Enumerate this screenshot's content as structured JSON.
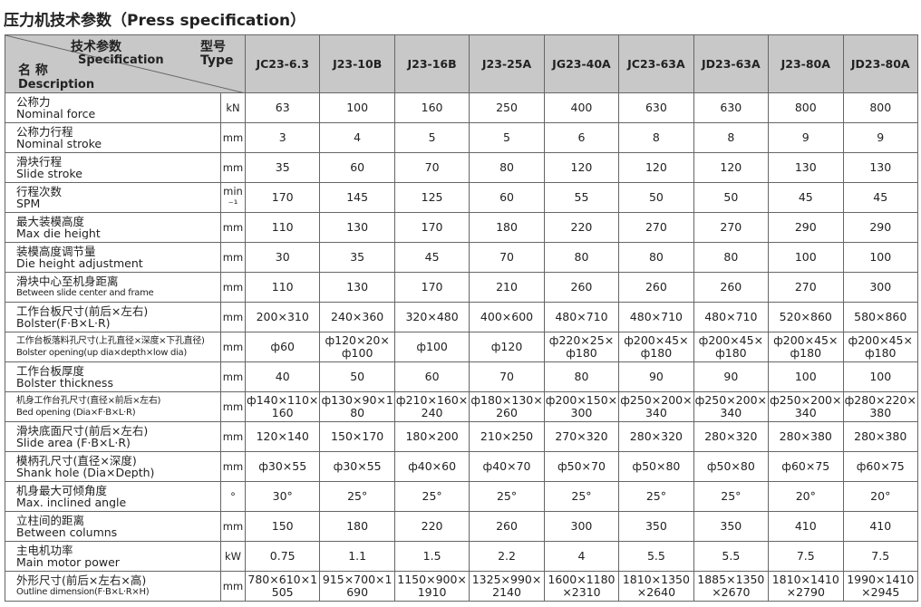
{
  "title": "压力机技术参数（Press specification）",
  "table": {
    "header": {
      "spec_zh": "技术参数",
      "spec_en": "Specification",
      "type_zh": "型号",
      "type_en": "Type",
      "desc_zh": "名 称",
      "desc_en": "Description"
    },
    "columns": [
      "JC23-6.3",
      "J23-10B",
      "J23-16B",
      "J23-25A",
      "JG23-40A",
      "JC23-63A",
      "JD23-63A",
      "J23-80A",
      "JD23-80A"
    ],
    "rows": [
      {
        "name_zh": "公称力",
        "name_en": "Nominal force",
        "unit": "kN",
        "values": [
          "63",
          "100",
          "160",
          "250",
          "400",
          "630",
          "630",
          "800",
          "800"
        ]
      },
      {
        "name_zh": "公称力行程",
        "name_en": "Nominal stroke",
        "unit": "mm",
        "values": [
          "3",
          "4",
          "5",
          "5",
          "6",
          "8",
          "8",
          "9",
          "9"
        ]
      },
      {
        "name_zh": "滑块行程",
        "name_en": "Slide stroke",
        "unit": "mm",
        "values": [
          "35",
          "60",
          "70",
          "80",
          "120",
          "120",
          "120",
          "130",
          "130"
        ]
      },
      {
        "name_zh": "行程次数",
        "name_en": "SPM",
        "unit": "min⁻¹",
        "values": [
          "170",
          "145",
          "125",
          "60",
          "55",
          "50",
          "50",
          "45",
          "45"
        ]
      },
      {
        "name_zh": "最大装模高度",
        "name_en": "Max die height",
        "unit": "mm",
        "values": [
          "110",
          "130",
          "170",
          "180",
          "220",
          "270",
          "270",
          "290",
          "290"
        ]
      },
      {
        "name_zh": "装模高度调节量",
        "name_en": "Die height adjustment",
        "unit": "mm",
        "values": [
          "30",
          "35",
          "45",
          "70",
          "80",
          "80",
          "80",
          "100",
          "100"
        ]
      },
      {
        "name_zh": "滑块中心至机身距离",
        "name_en": "Between slide center and frame",
        "unit": "mm",
        "values": [
          "110",
          "130",
          "170",
          "210",
          "260",
          "260",
          "260",
          "270",
          "300"
        ]
      },
      {
        "name_zh": "工作台板尺寸(前后×左右)",
        "name_en": "Bolster(F·B×L·R)",
        "unit": "mm",
        "values": [
          "200×310",
          "240×360",
          "320×480",
          "400×600",
          "480×710",
          "480×710",
          "480×710",
          "520×860",
          "580×860"
        ]
      },
      {
        "name_zh": "工作台板落料孔尺寸(上孔直径×深度×下孔直径)",
        "name_en": "Bolster opening(up dia×depth×low dia)",
        "unit": "mm",
        "values": [
          "ф60",
          "ф120×20×ф100",
          "ф100",
          "ф120",
          "ф220×25×ф180",
          "ф200×45×ф180",
          "ф200×45×ф180",
          "ф200×45×ф180",
          "ф200×45×ф180"
        ]
      },
      {
        "name_zh": "工作台板厚度",
        "name_en": "Bolster thickness",
        "unit": "mm",
        "values": [
          "40",
          "50",
          "60",
          "70",
          "80",
          "90",
          "90",
          "100",
          "100"
        ]
      },
      {
        "name_zh": "机身工作台孔尺寸(直径×前后×左右)",
        "name_en": "Bed opening (Dia×F·B×L·R)",
        "unit": "mm",
        "values": [
          "ф140×110×160",
          "ф130×90×180",
          "ф210×160×240",
          "ф180×130×260",
          "ф200×150×300",
          "ф250×200×340",
          "ф250×200×340",
          "ф250×200×340",
          "ф280×220×380"
        ]
      },
      {
        "name_zh": "滑块底面尺寸(前后×左右)",
        "name_en": "Slide area (F·B×L·R)",
        "unit": "mm",
        "values": [
          "120×140",
          "150×170",
          "180×200",
          "210×250",
          "270×320",
          "280×320",
          "280×320",
          "280×380",
          "280×380"
        ]
      },
      {
        "name_zh": "模柄孔尺寸(直径×深度)",
        "name_en": "Shank hole (Dia×Depth)",
        "unit": "mm",
        "values": [
          "ф30×55",
          "ф30×55",
          "ф40×60",
          "ф40×70",
          "ф50×70",
          "ф50×80",
          "ф50×80",
          "ф60×75",
          "ф60×75"
        ]
      },
      {
        "name_zh": "机身最大可倾角度",
        "name_en": "Max. inclined angle",
        "unit": "°",
        "values": [
          "30°",
          "25°",
          "25°",
          "25°",
          "25°",
          "25°",
          "25°",
          "20°",
          "20°"
        ]
      },
      {
        "name_zh": "立柱间的距离",
        "name_en": "Between columns",
        "unit": "mm",
        "values": [
          "150",
          "180",
          "220",
          "260",
          "300",
          "350",
          "350",
          "410",
          "410"
        ]
      },
      {
        "name_zh": "主电机功率",
        "name_en": "Main motor power",
        "unit": "kW",
        "values": [
          "0.75",
          "1.1",
          "1.5",
          "2.2",
          "4",
          "5.5",
          "5.5",
          "7.5",
          "7.5"
        ]
      },
      {
        "name_zh": "外形尺寸(前后×左右×高)",
        "name_en": "Outline dimension(F·B×L·R×H)",
        "unit": "mm",
        "values": [
          "780×610×1505",
          "915×700×1690",
          "1150×900×1910",
          "1325×990×2140",
          "1600×1180×2310",
          "1810×1350×2640",
          "1885×1350×2670",
          "1810×1410×2790",
          "1990×1410×2945"
        ]
      }
    ]
  }
}
